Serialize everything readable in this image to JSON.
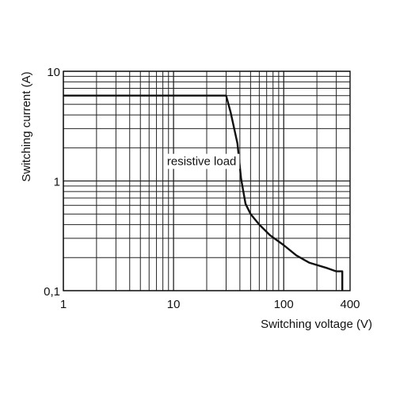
{
  "chart_data": {
    "type": "line",
    "x_scale": "log",
    "y_scale": "log",
    "xlim": [
      1,
      400
    ],
    "ylim": [
      0.1,
      10
    ],
    "grid": true,
    "xlabel": "Switching voltage (V)",
    "ylabel": "Switching current (A)",
    "x_ticks": [
      {
        "value": 1,
        "label": "1"
      },
      {
        "value": 10,
        "label": "10"
      },
      {
        "value": 100,
        "label": "100"
      },
      {
        "value": 400,
        "label": "400"
      }
    ],
    "y_ticks": [
      {
        "value": 0.1,
        "label": "0,1"
      },
      {
        "value": 1,
        "label": "1"
      },
      {
        "value": 10,
        "label": "10"
      }
    ],
    "annotations": [
      {
        "text": "resistive load",
        "x": 18,
        "y": 1.4
      }
    ],
    "series": [
      {
        "x": [
          1,
          30,
          33,
          38,
          41,
          45,
          50,
          60,
          75,
          100,
          130,
          170,
          250,
          300,
          340
        ],
        "y": [
          6,
          6,
          4.2,
          2.2,
          1.05,
          0.62,
          0.5,
          0.4,
          0.32,
          0.26,
          0.21,
          0.18,
          0.16,
          0.15,
          0.15
        ]
      }
    ]
  }
}
